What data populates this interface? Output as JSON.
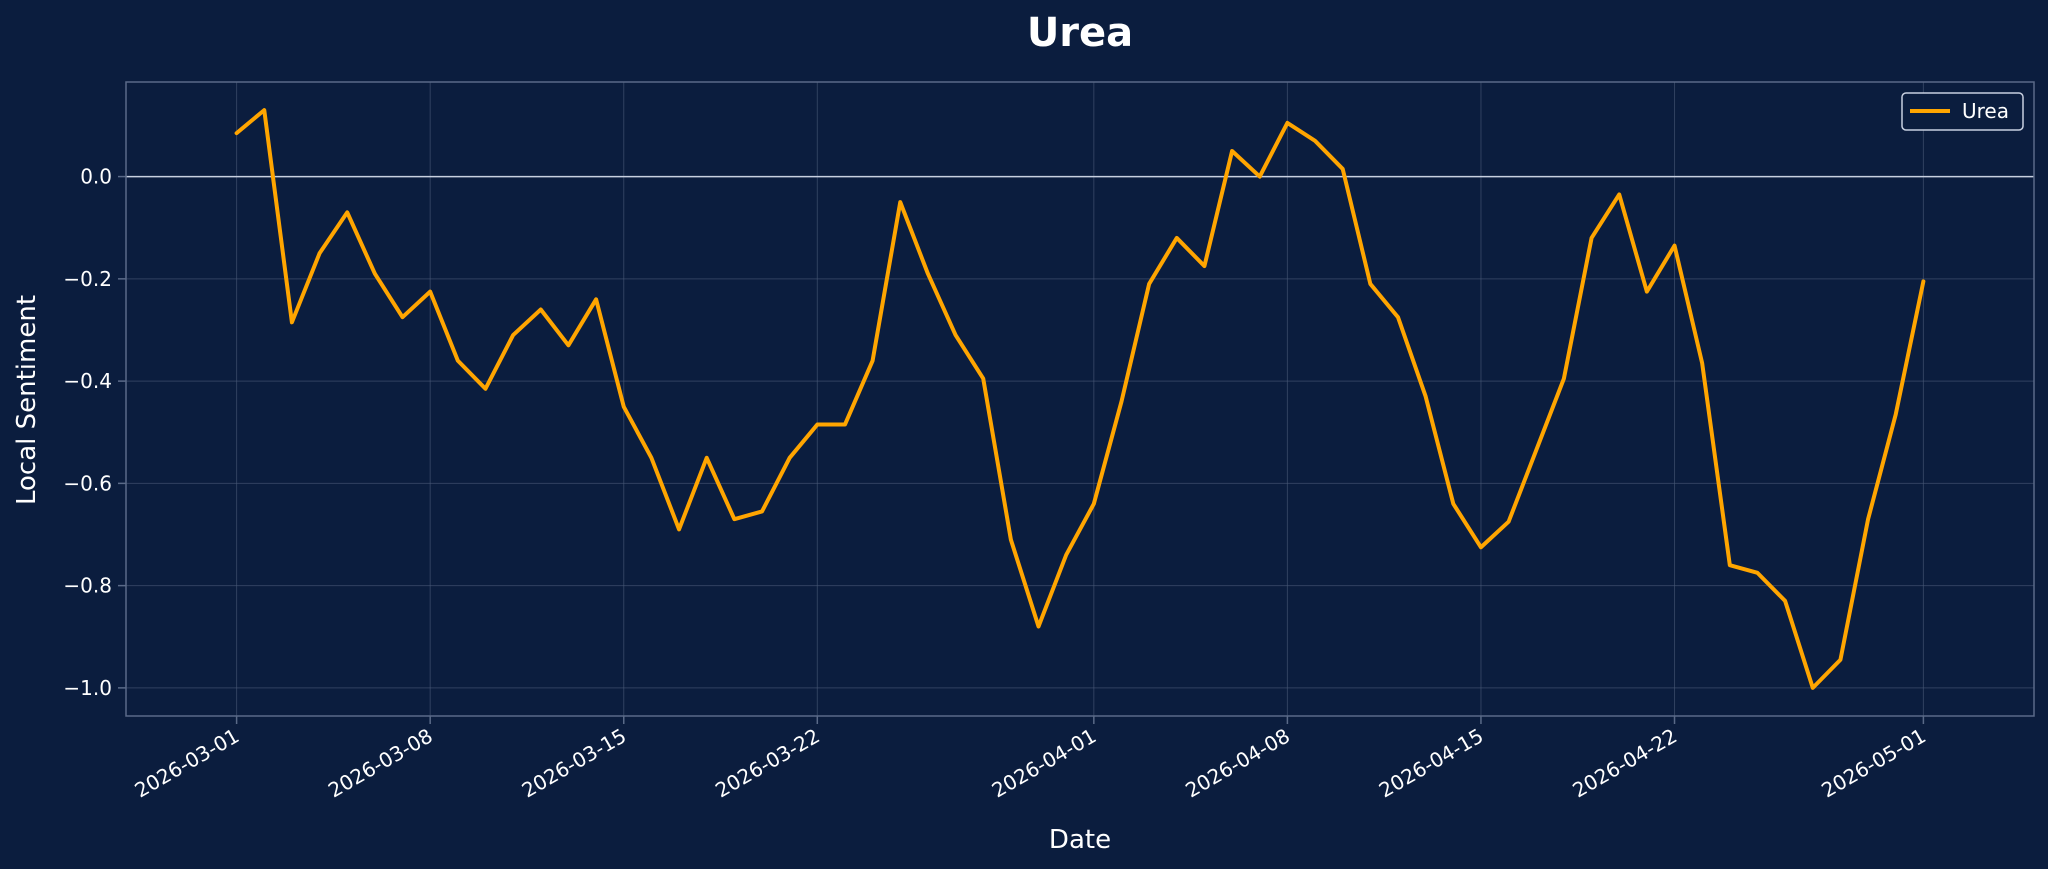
{
  "colors": {
    "background": "#0b1d3e",
    "grid": "#4a5a78",
    "spine": "#5a6a88",
    "zero_line": "#c8d0e0",
    "series": "#ffa500",
    "text": "#ffffff"
  },
  "chart_data": {
    "type": "line",
    "title": "Urea",
    "xlabel": "Date",
    "ylabel": "Local Sentiment",
    "x_type": "date",
    "xlim": [
      "2026-02-25",
      "2026-05-05"
    ],
    "ylim": [
      -1.055,
      0.185
    ],
    "x_ticks": [
      "2026-03-01",
      "2026-03-08",
      "2026-03-15",
      "2026-03-22",
      "2026-04-01",
      "2026-04-08",
      "2026-04-15",
      "2026-04-22",
      "2026-05-01"
    ],
    "y_ticks": [
      0.0,
      -0.2,
      -0.4,
      -0.6,
      -0.8,
      -1.0
    ],
    "y_tick_labels": [
      "0.0",
      "−0.2",
      "−0.4",
      "−0.6",
      "−0.8",
      "−1.0"
    ],
    "grid": true,
    "zero_line": true,
    "legend": {
      "position": "top-right",
      "entries": [
        "Urea"
      ]
    },
    "series": [
      {
        "name": "Urea",
        "x": [
          "2026-03-01",
          "2026-03-02",
          "2026-03-03",
          "2026-03-04",
          "2026-03-05",
          "2026-03-06",
          "2026-03-07",
          "2026-03-08",
          "2026-03-09",
          "2026-03-10",
          "2026-03-11",
          "2026-03-12",
          "2026-03-13",
          "2026-03-14",
          "2026-03-15",
          "2026-03-16",
          "2026-03-17",
          "2026-03-18",
          "2026-03-19",
          "2026-03-20",
          "2026-03-21",
          "2026-03-22",
          "2026-03-23",
          "2026-03-24",
          "2026-03-25",
          "2026-03-26",
          "2026-03-27",
          "2026-03-28",
          "2026-03-29",
          "2026-03-30",
          "2026-03-31",
          "2026-04-01",
          "2026-04-02",
          "2026-04-03",
          "2026-04-04",
          "2026-04-05",
          "2026-04-06",
          "2026-04-07",
          "2026-04-08",
          "2026-04-09",
          "2026-04-10",
          "2026-04-11",
          "2026-04-12",
          "2026-04-13",
          "2026-04-14",
          "2026-04-15",
          "2026-04-16",
          "2026-04-17",
          "2026-04-18",
          "2026-04-19",
          "2026-04-20",
          "2026-04-21",
          "2026-04-22",
          "2026-04-23",
          "2026-04-24",
          "2026-04-25",
          "2026-04-26",
          "2026-04-27",
          "2026-04-28",
          "2026-04-29",
          "2026-04-30",
          "2026-05-01"
        ],
        "values": [
          0.085,
          0.13,
          -0.285,
          -0.15,
          -0.07,
          -0.19,
          -0.275,
          -0.225,
          -0.36,
          -0.415,
          -0.31,
          -0.26,
          -0.33,
          -0.24,
          -0.45,
          -0.55,
          -0.69,
          -0.55,
          -0.67,
          -0.655,
          -0.55,
          -0.485,
          -0.485,
          -0.36,
          -0.05,
          -0.19,
          -0.31,
          -0.395,
          -0.71,
          -0.88,
          -0.74,
          -0.64,
          -0.44,
          -0.21,
          -0.12,
          -0.175,
          0.05,
          0.0,
          0.105,
          0.07,
          0.015,
          -0.21,
          -0.275,
          -0.43,
          -0.64,
          -0.725,
          -0.675,
          -0.535,
          -0.395,
          -0.12,
          -0.035,
          -0.225,
          -0.135,
          -0.365,
          -0.76,
          -0.775,
          -0.83,
          -1.0,
          -0.945,
          -0.67,
          -0.465,
          -0.205
        ]
      }
    ]
  }
}
